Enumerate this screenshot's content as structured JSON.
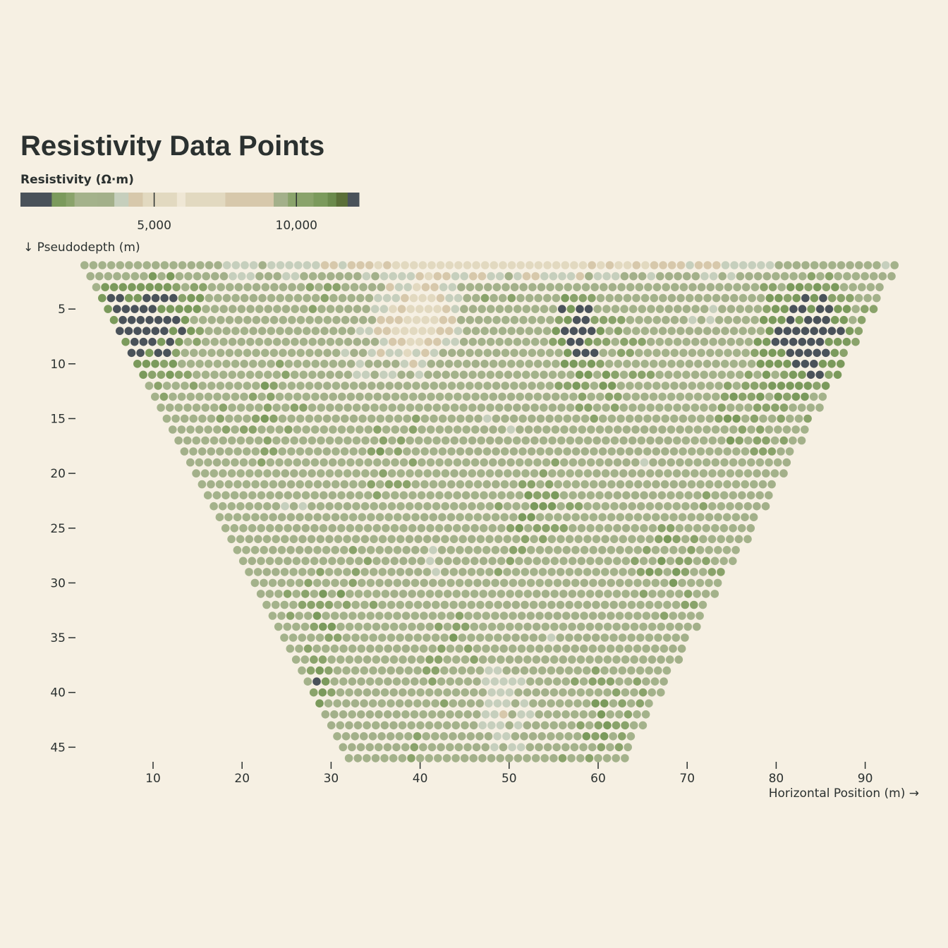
{
  "chart_data": {
    "type": "scatter",
    "subtype": "pseudosection",
    "title": "Resistivity Data Points",
    "legend_title": "Resistivity (Ω·m)",
    "legend_ticks": [
      {
        "value": 5000,
        "label": "5,000"
      },
      {
        "value": 10000,
        "label": "10,000"
      }
    ],
    "legend_domain": [
      300,
      12200
    ],
    "color_scale": [
      {
        "max": 1400,
        "color": "#4a525a"
      },
      {
        "max": 1900,
        "color": "#7b9a5c"
      },
      {
        "max": 2200,
        "color": "#8aa36b"
      },
      {
        "max": 3000,
        "color": "#a4b28b"
      },
      {
        "max": 3600,
        "color": "#a3b08a"
      },
      {
        "max": 4100,
        "color": "#c6cfbd"
      },
      {
        "max": 4600,
        "color": "#d7c8ab"
      },
      {
        "max": 5100,
        "color": "#e2d9c0"
      },
      {
        "max": 5800,
        "color": "#e2d9c0"
      },
      {
        "max": 6100,
        "color": "#efe7d5"
      },
      {
        "max": 7500,
        "color": "#e2d9c0"
      },
      {
        "max": 9200,
        "color": "#d7c8ab"
      },
      {
        "max": 9700,
        "color": "#a3b08a"
      },
      {
        "max": 10100,
        "color": "#8aa36b"
      },
      {
        "max": 10600,
        "color": "#8aa36b"
      },
      {
        "max": 11100,
        "color": "#7b9a5c"
      },
      {
        "max": 11400,
        "color": "#6b8a4c"
      },
      {
        "max": 11800,
        "color": "#5b6f38"
      },
      {
        "max": 99999,
        "color": "#4a525a"
      }
    ],
    "xlabel": "Horizontal Position (m) →",
    "ylabel": "↓ Pseudodepth (m)",
    "xlim": [
      -5,
      101
    ],
    "ylim": [
      0,
      46
    ],
    "xticks": [
      10,
      20,
      30,
      40,
      50,
      60,
      70,
      80,
      90
    ],
    "yticks": [
      5,
      10,
      15,
      20,
      25,
      30,
      35,
      40,
      45
    ],
    "grid": {
      "depth_start": 1,
      "depth_step": 1,
      "rows": 46,
      "top_row_x_start": 2.3,
      "top_row_x_end": 93.8,
      "bottom_row_x_start": 32.0,
      "bottom_row_x_end": 63.2,
      "point_spacing": 1.0
    },
    "resistivity_model": {
      "background": 2700,
      "anomalies": [
        {
          "name": "left-shallow-conductor",
          "x": 9,
          "depth": 6,
          "rx": 8,
          "rz": 6.5,
          "value": 900
        },
        {
          "name": "center-resistive-body",
          "x": 40,
          "depth": 6,
          "rx": 6.5,
          "rz": 5,
          "value": 5400
        },
        {
          "name": "center-right-conductor",
          "x": 57.5,
          "depth": 6.5,
          "rx": 3.5,
          "rz": 4.5,
          "value": 900
        },
        {
          "name": "right-conductor",
          "x": 84,
          "depth": 8,
          "rx": 7,
          "rz": 6.5,
          "value": 900
        },
        {
          "name": "shallow-resistive-layer",
          "x": 50,
          "depth": 1,
          "rx": 40,
          "rz": 1.6,
          "value": 5000
        },
        {
          "name": "deep-left-conductor",
          "x": 29,
          "depth": 39.5,
          "rx": 1.5,
          "rz": 2,
          "value": 1000
        },
        {
          "name": "deep-center-resistive",
          "x": 49,
          "depth": 41,
          "rx": 5,
          "rz": 6,
          "value": 3900
        }
      ]
    }
  }
}
